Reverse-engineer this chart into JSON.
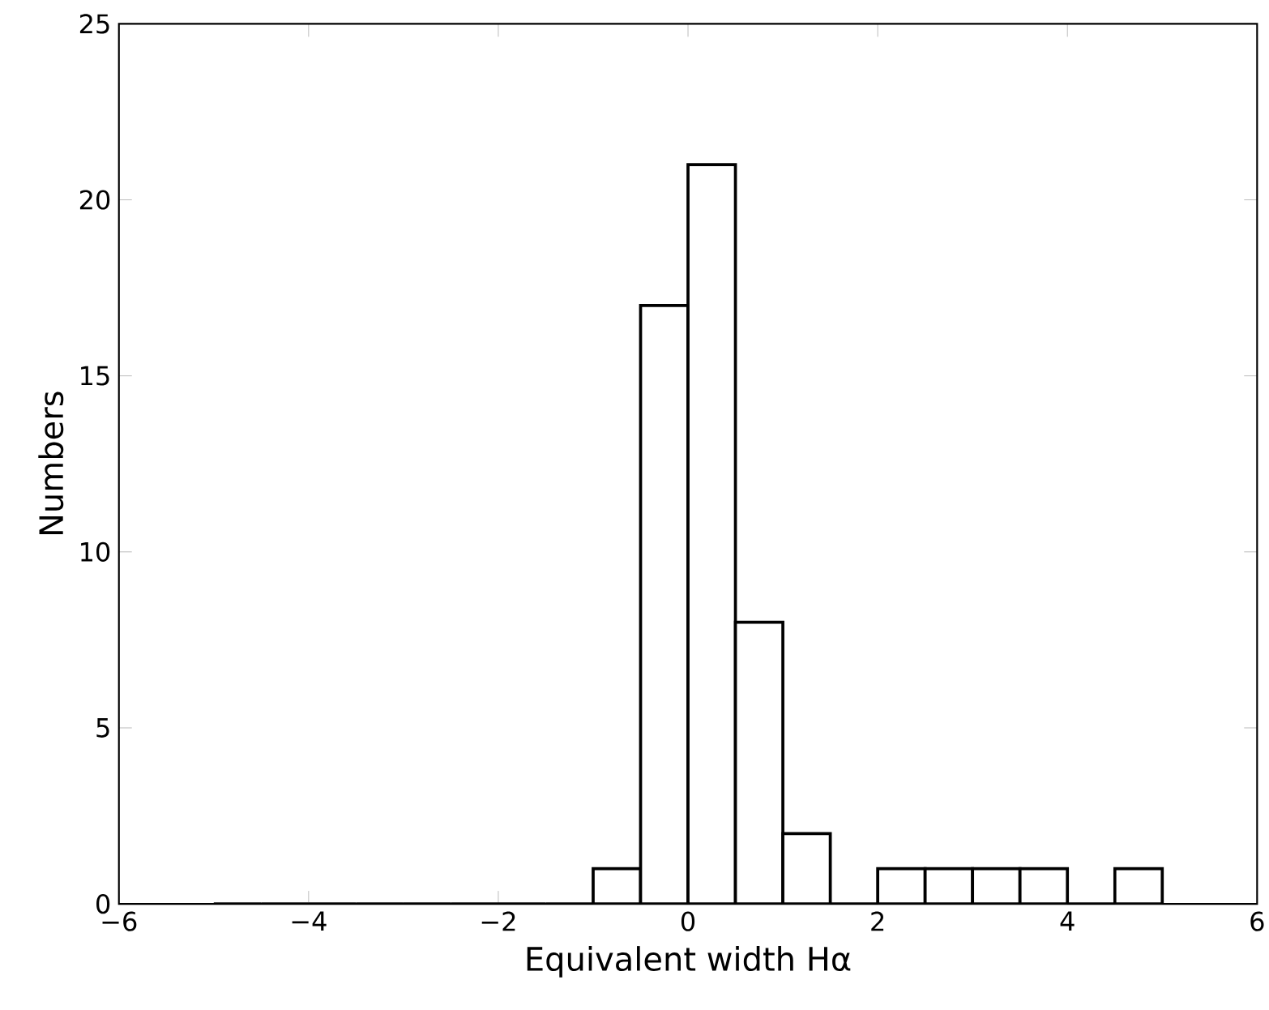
{
  "chart_data": {
    "type": "histogram",
    "xlabel": "Equivalent width Hα",
    "ylabel": "Numbers",
    "bins": [
      -5,
      -4.5,
      -4,
      -3.5,
      -3,
      -2.5,
      -2,
      -1.5,
      -1,
      -0.5,
      0,
      0.5,
      1,
      1.5,
      2,
      2.5,
      3,
      3.5,
      4,
      4.5,
      5
    ],
    "values": [
      0,
      0,
      0,
      0,
      0,
      0,
      0,
      0,
      1,
      17,
      21,
      8,
      2,
      0,
      1,
      1,
      1,
      1,
      0,
      1
    ],
    "color": "#ffffff",
    "xlim": [
      -6,
      6
    ],
    "xticks": [
      {
        "value": -6,
        "label": "−6"
      },
      {
        "value": -4,
        "label": "−4"
      },
      {
        "value": -2,
        "label": "−2"
      },
      0,
      2,
      4,
      6
    ],
    "ylim": [
      0,
      25
    ],
    "yticks": [
      0,
      5,
      10,
      15,
      20,
      25
    ],
    "grid": false
  }
}
